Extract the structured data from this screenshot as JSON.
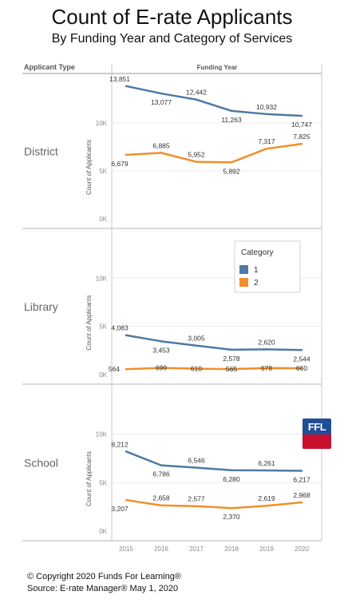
{
  "header": {
    "title": "Count of E-rate Applicants",
    "subtitle": "By Funding Year and Category of Services"
  },
  "footer": {
    "copyright": "© Copyright 2020 Funds For Learning®",
    "source": "Source: E-rate Manager® May 1, 2020"
  },
  "logo": {
    "text": "FFL",
    "icon": "ffl-logo-icon"
  },
  "colors": {
    "category1": "#4e79a7",
    "category2": "#f28e2b",
    "grid": "#ececec",
    "border": "#c8c8c8"
  },
  "chart_data": {
    "type": "line",
    "row_header": "Applicant Type",
    "column_header": "Funding Year",
    "ylabel": "Count of Applicants",
    "x": [
      "2015",
      "2016",
      "2017",
      "2018",
      "2019",
      "2020"
    ],
    "ylim": [
      0,
      14500
    ],
    "yticks": [
      0,
      5000,
      10000
    ],
    "ytick_labels": [
      "0K",
      "5K",
      "10K"
    ],
    "grid": true,
    "legend": {
      "title": "Category",
      "entries": [
        "1",
        "2"
      ],
      "placement": "right, middle panel"
    },
    "panels": [
      {
        "name": "District",
        "series": [
          {
            "name": "1",
            "values": [
              13851,
              13077,
              12442,
              11263,
              10932,
              10747
            ],
            "labels": [
              "13,851",
              "13,077",
              "12,442",
              "11,263",
              "10,932",
              "10,747"
            ]
          },
          {
            "name": "2",
            "values": [
              6679,
              6885,
              5952,
              5892,
              7317,
              7825
            ],
            "labels": [
              "6,679",
              "6,885",
              "5,952",
              "5,892",
              "7,317",
              "7,825"
            ]
          }
        ]
      },
      {
        "name": "Library",
        "series": [
          {
            "name": "1",
            "values": [
              4083,
              3453,
              3005,
              2578,
              2620,
              2544
            ],
            "labels": [
              "4,083",
              "3,453",
              "3,005",
              "2,578",
              "2,620",
              "2,544"
            ]
          },
          {
            "name": "2",
            "values": [
              564,
              699,
              610,
              565,
              678,
              660
            ],
            "labels": [
              "564",
              "699",
              "610",
              "565",
              "678",
              "660"
            ]
          }
        ]
      },
      {
        "name": "School",
        "series": [
          {
            "name": "1",
            "values": [
              8212,
              6786,
              6546,
              6280,
              6261,
              6217
            ],
            "labels": [
              "8,212",
              "6,786",
              "6,546",
              "6,280",
              "6,261",
              "6,217"
            ]
          },
          {
            "name": "2",
            "values": [
              3207,
              2658,
              2577,
              2370,
              2619,
              2968
            ],
            "labels": [
              "3,207",
              "2,658",
              "2,577",
              "2,370",
              "2,619",
              "2,968"
            ]
          }
        ]
      }
    ]
  }
}
